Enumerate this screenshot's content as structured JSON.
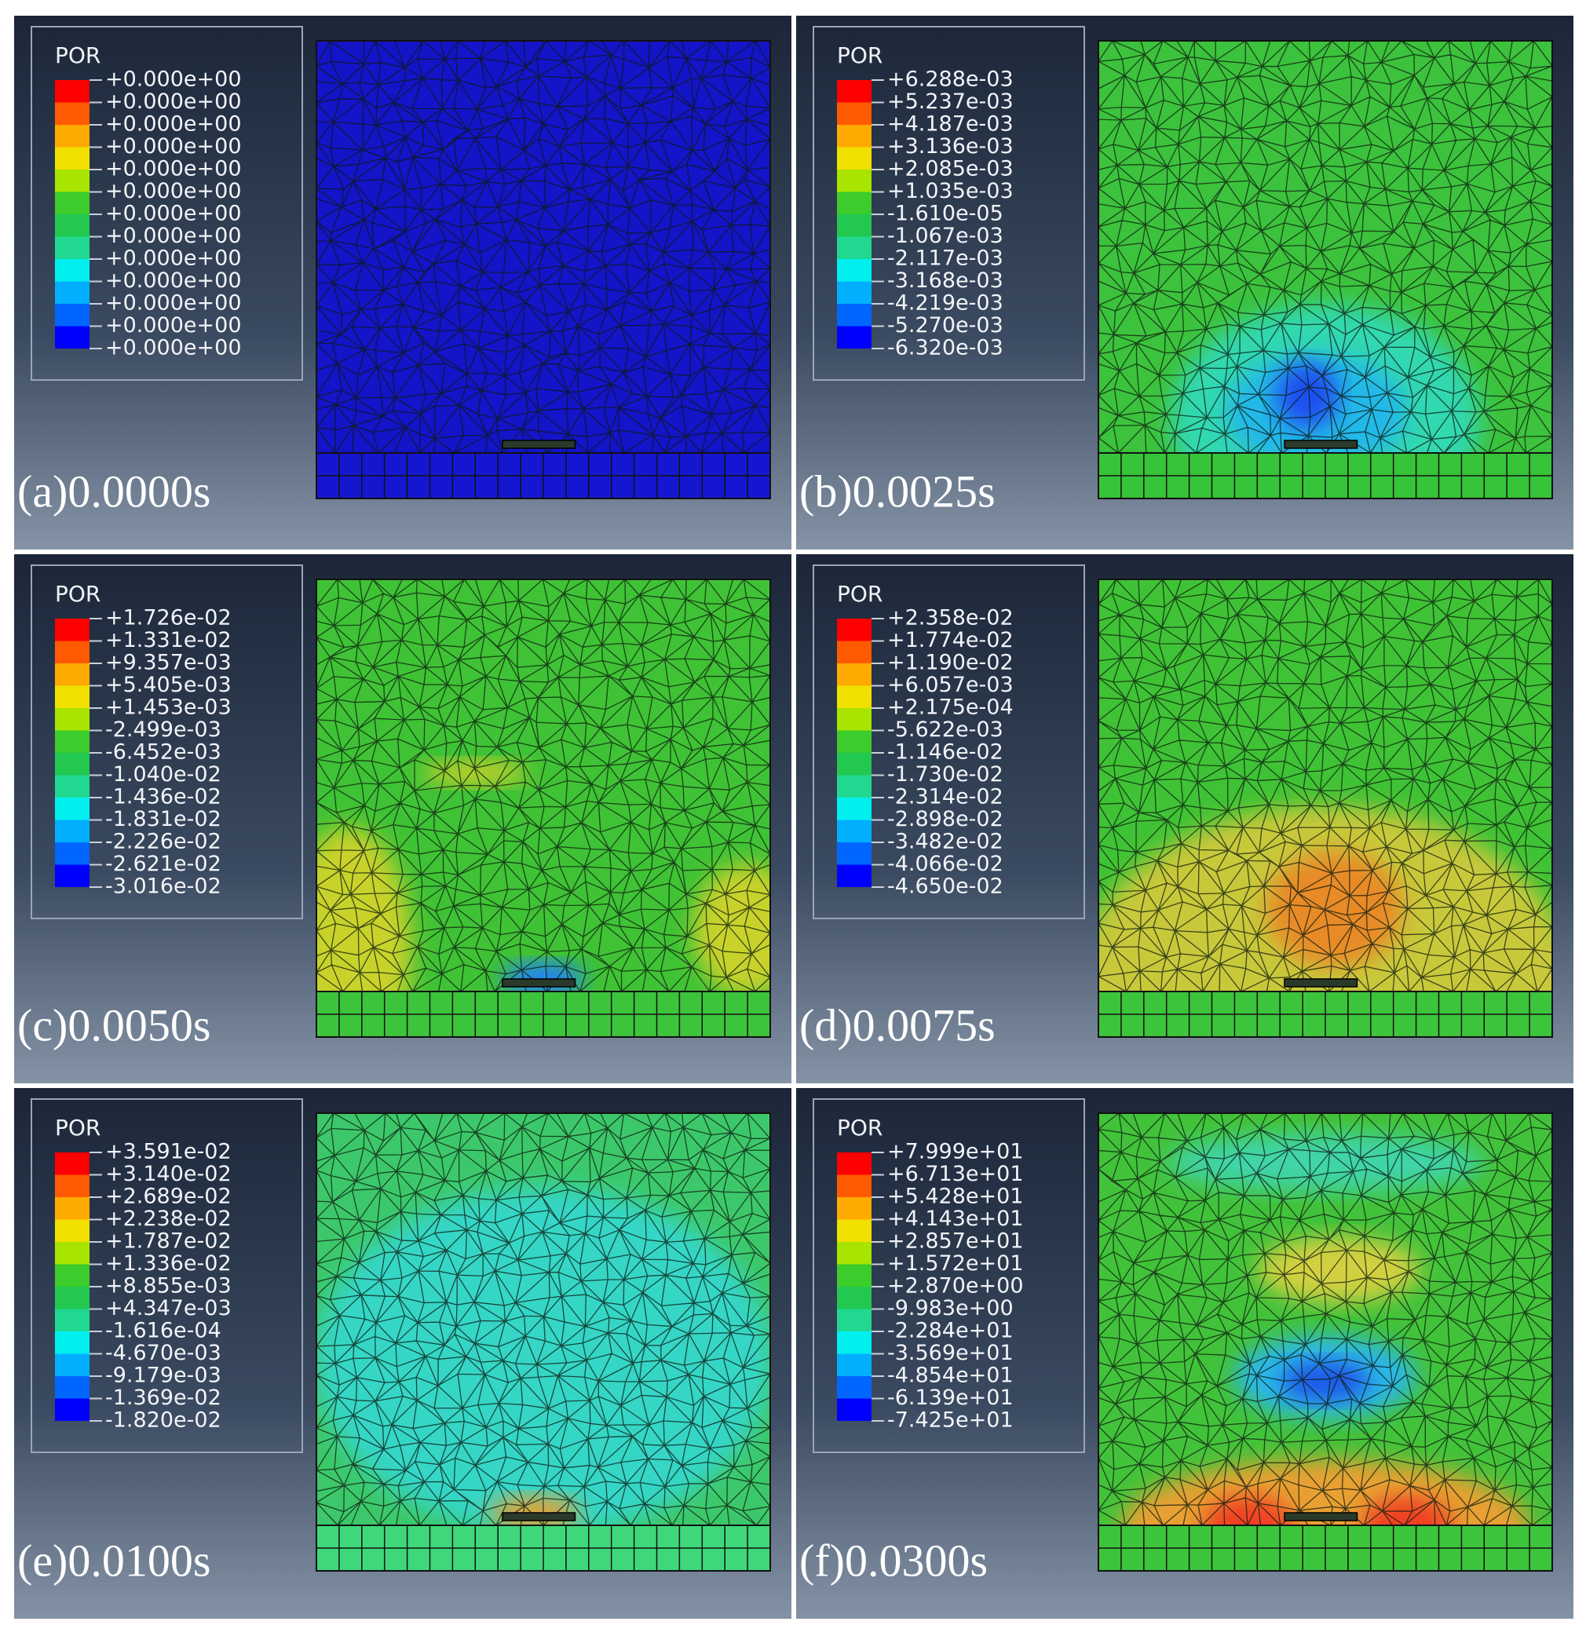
{
  "panels": [
    {
      "label": "(a)0.0000s",
      "legend_title": "POR",
      "legend": [
        "+0.000e+00",
        "+0.000e+00",
        "+0.000e+00",
        "+0.000e+00",
        "+0.000e+00",
        "+0.000e+00",
        "+0.000e+00",
        "+0.000e+00",
        "+0.000e+00",
        "+0.000e+00",
        "+0.000e+00",
        "+0.000e+00",
        "+0.000e+00"
      ]
    },
    {
      "label": "(b)0.0025s",
      "legend_title": "POR",
      "legend": [
        "+6.288e-03",
        "+5.237e-03",
        "+4.187e-03",
        "+3.136e-03",
        "+2.085e-03",
        "+1.035e-03",
        "-1.610e-05",
        "-1.067e-03",
        "-2.117e-03",
        "-3.168e-03",
        "-4.219e-03",
        "-5.270e-03",
        "-6.320e-03"
      ]
    },
    {
      "label": "(c)0.0050s",
      "legend_title": "POR",
      "legend": [
        "+1.726e-02",
        "+1.331e-02",
        "+9.357e-03",
        "+5.405e-03",
        "+1.453e-03",
        "-2.499e-03",
        "-6.452e-03",
        "-1.040e-02",
        "-1.436e-02",
        "-1.831e-02",
        "-2.226e-02",
        "-2.621e-02",
        "-3.016e-02"
      ]
    },
    {
      "label": "(d)0.0075s",
      "legend_title": "POR",
      "legend": [
        "+2.358e-02",
        "+1.774e-02",
        "+1.190e-02",
        "+6.057e-03",
        "+2.175e-04",
        "-5.622e-03",
        "-1.146e-02",
        "-1.730e-02",
        "-2.314e-02",
        "-2.898e-02",
        "-3.482e-02",
        "-4.066e-02",
        "-4.650e-02"
      ]
    },
    {
      "label": "(e)0.0100s",
      "legend_title": "POR",
      "legend": [
        "+3.591e-02",
        "+3.140e-02",
        "+2.689e-02",
        "+2.238e-02",
        "+1.787e-02",
        "+1.336e-02",
        "+8.855e-03",
        "+4.347e-03",
        "-1.616e-04",
        "-4.670e-03",
        "-9.179e-03",
        "-1.369e-02",
        "-1.820e-02"
      ]
    },
    {
      "label": "(f)0.0300s",
      "legend_title": "POR",
      "legend": [
        "+7.999e+01",
        "+6.713e+01",
        "+5.428e+01",
        "+4.143e+01",
        "+2.857e+01",
        "+1.572e+01",
        "+2.870e+00",
        "-9.983e+00",
        "-2.284e+01",
        "-3.569e+01",
        "-4.854e+01",
        "-6.139e+01",
        "-7.425e+01"
      ]
    }
  ]
}
